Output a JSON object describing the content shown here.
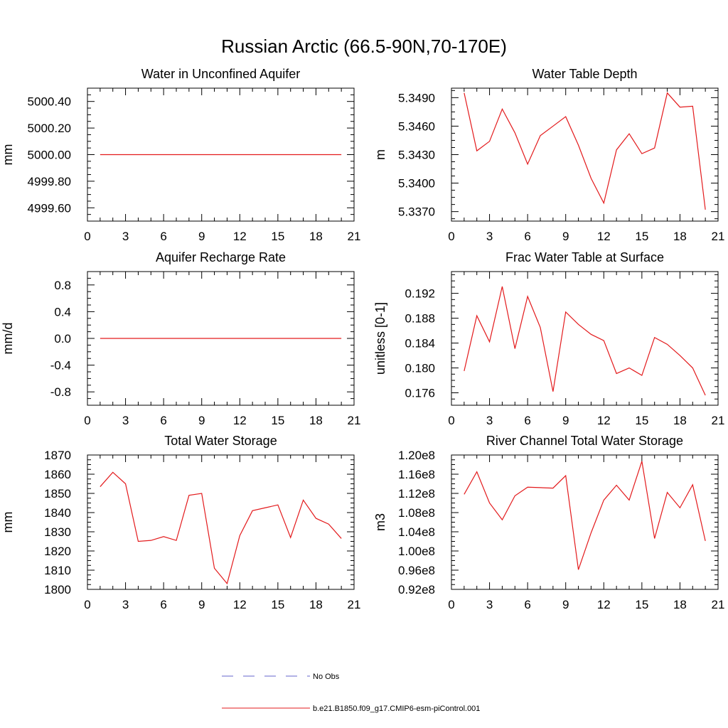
{
  "figure_title": "Russian Arctic (66.5-90N,70-170E)",
  "legend": [
    {
      "label": "No Obs",
      "color": "#6666cc",
      "dash": true
    },
    {
      "label": "b.e21.B1850.f09_g17.CMIP6-esm-piControl.001",
      "color": "#e31a1c",
      "dash": false
    }
  ],
  "chart_data": [
    {
      "type": "line",
      "title": "Water in Unconfined Aquifer",
      "ylabel": "mm",
      "xlim": [
        0,
        21
      ],
      "ylim": [
        4999.5,
        5000.5
      ],
      "xticks": [
        0,
        3,
        6,
        9,
        12,
        15,
        18,
        21
      ],
      "xtick_labels": [
        "0",
        "3",
        "6",
        "9",
        "12",
        "15",
        "18",
        "21"
      ],
      "yticks": [
        4999.6,
        4999.8,
        5000.0,
        5000.2,
        5000.4
      ],
      "ytick_labels": [
        "4999.60",
        "4999.80",
        "5000.00",
        "5000.20",
        "5000.40"
      ],
      "series": [
        {
          "x": [
            1,
            2,
            3,
            4,
            5,
            6,
            7,
            8,
            9,
            10,
            11,
            12,
            13,
            14,
            15,
            16,
            17,
            18,
            19,
            20
          ],
          "y": [
            5000,
            5000,
            5000,
            5000,
            5000,
            5000,
            5000,
            5000,
            5000,
            5000,
            5000,
            5000,
            5000,
            5000,
            5000,
            5000,
            5000,
            5000,
            5000,
            5000
          ]
        }
      ]
    },
    {
      "type": "line",
      "title": "Water Table Depth",
      "ylabel": "m",
      "xlim": [
        0,
        21
      ],
      "ylim": [
        5.336,
        5.35
      ],
      "xticks": [
        0,
        3,
        6,
        9,
        12,
        15,
        18,
        21
      ],
      "xtick_labels": [
        "0",
        "3",
        "6",
        "9",
        "12",
        "15",
        "18",
        "21"
      ],
      "yticks": [
        5.337,
        5.34,
        5.343,
        5.346,
        5.349
      ],
      "ytick_labels": [
        "5.3370",
        "5.3400",
        "5.3430",
        "5.3460",
        "5.3490"
      ],
      "series": [
        {
          "x": [
            1,
            2,
            3,
            4,
            5,
            6,
            7,
            8,
            9,
            10,
            11,
            12,
            13,
            14,
            15,
            16,
            17,
            18,
            19,
            20
          ],
          "y": [
            5.3495,
            5.3434,
            5.3444,
            5.3478,
            5.3453,
            5.342,
            5.345,
            5.346,
            5.347,
            5.344,
            5.3405,
            5.3379,
            5.3435,
            5.3452,
            5.3431,
            5.3437,
            5.3495,
            5.348,
            5.3481,
            5.3372
          ]
        }
      ]
    },
    {
      "type": "line",
      "title": "Aquifer Recharge Rate",
      "ylabel": "mm/d",
      "xlim": [
        0,
        21
      ],
      "ylim": [
        -1.0,
        1.0
      ],
      "xticks": [
        0,
        3,
        6,
        9,
        12,
        15,
        18,
        21
      ],
      "xtick_labels": [
        "0",
        "3",
        "6",
        "9",
        "12",
        "15",
        "18",
        "21"
      ],
      "yticks": [
        -0.8,
        -0.4,
        0.0,
        0.4,
        0.8
      ],
      "ytick_labels": [
        "-0.8",
        "-0.4",
        "0.0",
        "0.4",
        "0.8"
      ],
      "series": [
        {
          "x": [
            1,
            2,
            3,
            4,
            5,
            6,
            7,
            8,
            9,
            10,
            11,
            12,
            13,
            14,
            15,
            16,
            17,
            18,
            19,
            20
          ],
          "y": [
            0,
            0,
            0,
            0,
            0,
            0,
            0,
            0,
            0,
            0,
            0,
            0,
            0,
            0,
            0,
            0,
            0,
            0,
            0,
            0
          ]
        }
      ]
    },
    {
      "type": "line",
      "title": "Frac Water Table at Surface",
      "ylabel": "unitless [0-1]",
      "xlim": [
        0,
        21
      ],
      "ylim": [
        0.174,
        0.1955
      ],
      "xticks": [
        0,
        3,
        6,
        9,
        12,
        15,
        18,
        21
      ],
      "xtick_labels": [
        "0",
        "3",
        "6",
        "9",
        "12",
        "15",
        "18",
        "21"
      ],
      "yticks": [
        0.176,
        0.18,
        0.184,
        0.188,
        0.192
      ],
      "ytick_labels": [
        "0.176",
        "0.180",
        "0.184",
        "0.188",
        "0.192"
      ],
      "series": [
        {
          "x": [
            1,
            2,
            3,
            4,
            5,
            6,
            7,
            8,
            9,
            10,
            11,
            12,
            13,
            14,
            15,
            16,
            17,
            18,
            19,
            20
          ],
          "y": [
            0.1795,
            0.1884,
            0.1842,
            0.1931,
            0.1831,
            0.1915,
            0.1865,
            0.1762,
            0.189,
            0.187,
            0.1854,
            0.1844,
            0.1791,
            0.18,
            0.1788,
            0.1849,
            0.1838,
            0.182,
            0.18,
            0.1756
          ]
        }
      ]
    },
    {
      "type": "line",
      "title": "Total Water Storage",
      "ylabel": "mm",
      "xlim": [
        0,
        21
      ],
      "ylim": [
        1800,
        1870
      ],
      "xticks": [
        0,
        3,
        6,
        9,
        12,
        15,
        18,
        21
      ],
      "xtick_labels": [
        "0",
        "3",
        "6",
        "9",
        "12",
        "15",
        "18",
        "21"
      ],
      "yticks": [
        1800,
        1810,
        1820,
        1830,
        1840,
        1850,
        1860,
        1870
      ],
      "ytick_labels": [
        "1800",
        "1810",
        "1820",
        "1830",
        "1840",
        "1850",
        "1860",
        "1870"
      ],
      "series": [
        {
          "x": [
            1,
            2,
            3,
            4,
            5,
            6,
            7,
            8,
            9,
            10,
            11,
            12,
            13,
            14,
            15,
            16,
            17,
            18,
            19,
            20
          ],
          "y": [
            1853.5,
            1861,
            1855,
            1825,
            1825.5,
            1827.5,
            1825.5,
            1849,
            1850,
            1811,
            1803,
            1828,
            1841,
            1842.5,
            1844,
            1827,
            1846.5,
            1837,
            1834,
            1826.5
          ]
        }
      ]
    },
    {
      "type": "line",
      "title": "River Channel Total Water Storage",
      "ylabel": "m3",
      "xlim": [
        0,
        21
      ],
      "ylim": [
        92000000.0,
        120000000.0
      ],
      "xticks": [
        0,
        3,
        6,
        9,
        12,
        15,
        18,
        21
      ],
      "xtick_labels": [
        "0",
        "3",
        "6",
        "9",
        "12",
        "15",
        "18",
        "21"
      ],
      "yticks": [
        92000000.0,
        96000000.0,
        100000000.0,
        104000000.0,
        108000000.0,
        112000000.0,
        116000000.0,
        120000000.0
      ],
      "ytick_labels": [
        "0.92e8",
        "0.96e8",
        "1.00e8",
        "1.04e8",
        "1.08e8",
        "1.12e8",
        "1.16e8",
        "1.20e8"
      ],
      "series": [
        {
          "x": [
            1,
            2,
            3,
            4,
            5,
            6,
            7,
            8,
            9,
            10,
            11,
            12,
            13,
            14,
            15,
            16,
            17,
            18,
            19,
            20
          ],
          "y": [
            111800000.0,
            116500000.0,
            110000000.0,
            106500000.0,
            111500000.0,
            113300000.0,
            113200000.0,
            113100000.0,
            115700000.0,
            96100000.0,
            103800000.0,
            110600000.0,
            113700000.0,
            110600000.0,
            118700000.0,
            102600000.0,
            112200000.0,
            109000000.0,
            113800000.0,
            102100000.0
          ]
        }
      ]
    }
  ]
}
